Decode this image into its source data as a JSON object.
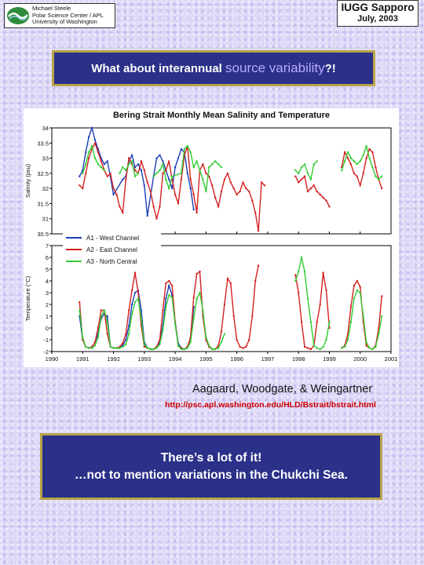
{
  "header": {
    "affiliation_lines": [
      "Michael Steele",
      "Polar Science Center / APL",
      "University of Washington"
    ],
    "conference_title": "IUGG Sapporo",
    "conference_date": "July, 2003"
  },
  "question": {
    "prefix": "What about interannual ",
    "highlight": "source variability",
    "suffix": "?!"
  },
  "chart_data": {
    "type": "line",
    "title": "Bering Strait Monthly Mean Salinity and Temperature",
    "x_ticks": [
      "1990",
      "1991",
      "1992",
      "1993",
      "1994",
      "1995",
      "1996",
      "1997",
      "1998",
      "1999",
      "2000",
      "2001"
    ],
    "xlim": [
      1990,
      2001
    ],
    "salinity": {
      "ylabel": "Salinity  (psu)",
      "ylim": [
        30.5,
        34
      ],
      "y_ticks": [
        "34",
        "33.5",
        "33",
        "32.5",
        "32",
        "31.5",
        "31",
        "30.5"
      ],
      "series": [
        {
          "name": "A1 - West Channel",
          "color": "#1a3fb5",
          "x": [
            1990.9,
            1991.0,
            1991.1,
            1991.2,
            1991.3,
            1991.4,
            1991.5,
            1991.6,
            1991.7,
            1991.8,
            1991.9,
            1992.0,
            1992.3,
            1992.4,
            1992.5,
            1992.6,
            1992.7,
            1992.8,
            1992.9,
            1993.0,
            1993.1,
            1993.3,
            1993.4,
            1993.5,
            1993.6,
            1993.7,
            1993.8,
            1993.9,
            1994.0,
            1994.1,
            1994.2,
            1994.3,
            1994.4,
            1994.5,
            1994.6
          ],
          "y": [
            32.4,
            32.6,
            33.2,
            33.7,
            34.0,
            33.6,
            33.3,
            33.0,
            32.8,
            32.9,
            32.4,
            31.8,
            32.3,
            32.4,
            32.9,
            33.1,
            32.7,
            32.8,
            32.6,
            32.1,
            31.1,
            32.4,
            33.0,
            33.1,
            32.9,
            32.6,
            32.3,
            32.0,
            32.7,
            33.0,
            33.3,
            33.2,
            32.5,
            32.0,
            31.3
          ]
        },
        {
          "name": "A2 - East Channel",
          "color": "#d42020",
          "x": [
            1990.9,
            1991.0,
            1991.1,
            1991.2,
            1991.3,
            1991.4,
            1991.5,
            1991.6,
            1991.7,
            1991.8,
            1991.9,
            1992.0,
            1992.1,
            1992.2,
            1992.3,
            1992.4,
            1992.5,
            1992.6,
            1992.7,
            1992.8,
            1992.9,
            1993.0,
            1993.1,
            1993.2,
            1993.3,
            1993.4,
            1993.5,
            1993.6,
            1993.7,
            1993.8,
            1993.9,
            1994.0,
            1994.1,
            1994.2,
            1994.3,
            1994.4,
            1994.5,
            1994.6,
            1994.7,
            1994.8,
            1994.9,
            1995.0,
            1995.1,
            1995.2,
            1995.3,
            1995.4,
            1995.5,
            1995.6,
            1995.7,
            1995.8,
            1995.9,
            1996.0,
            1996.1,
            1996.2,
            1996.3,
            1996.4,
            1996.5,
            1996.6,
            1996.7,
            1996.8,
            1996.9,
            1997.9,
            1998.0,
            1998.1,
            1998.2,
            1998.3,
            1998.4,
            1998.5,
            1998.6,
            1998.7,
            1998.8,
            1998.9,
            1999.0,
            1999.4,
            1999.5,
            1999.6,
            1999.7,
            1999.8,
            1999.9,
            2000.0,
            2000.1,
            2000.2,
            2000.3,
            2000.4,
            2000.5,
            2000.6,
            2000.7
          ],
          "y": [
            32.1,
            32.0,
            32.5,
            33.0,
            33.3,
            33.5,
            33.2,
            32.9,
            32.6,
            32.4,
            32.5,
            32.0,
            31.8,
            31.4,
            31.2,
            32.3,
            33.0,
            32.8,
            32.6,
            32.5,
            32.9,
            32.6,
            32.2,
            31.9,
            31.4,
            31.0,
            31.4,
            32.5,
            32.6,
            32.9,
            32.3,
            31.8,
            31.5,
            32.3,
            33.1,
            33.4,
            32.3,
            31.8,
            31.2,
            32.6,
            32.8,
            32.5,
            32.4,
            32.1,
            31.7,
            31.4,
            31.9,
            32.3,
            32.5,
            32.2,
            32.0,
            31.8,
            31.9,
            32.2,
            32.0,
            31.9,
            31.6,
            31.2,
            30.6,
            32.2,
            32.1,
            32.4,
            32.2,
            32.3,
            32.4,
            31.9,
            32.0,
            32.1,
            31.9,
            31.8,
            31.7,
            31.6,
            31.4,
            32.7,
            33.2,
            33.0,
            32.8,
            32.5,
            32.4,
            32.1,
            32.5,
            33.0,
            33.3,
            33.2,
            32.7,
            32.3,
            32.0
          ]
        },
        {
          "name": "A3 - North Central",
          "color": "#33cc33",
          "x": [
            1991.0,
            1991.1,
            1991.2,
            1991.3,
            1991.4,
            1991.5,
            1991.6,
            1991.7,
            1992.2,
            1992.3,
            1992.4,
            1992.5,
            1992.6,
            1992.7,
            1992.8,
            1993.3,
            1993.4,
            1993.5,
            1993.6,
            1993.7,
            1993.8,
            1993.9,
            1994.2,
            1994.3,
            1994.4,
            1994.5,
            1994.6,
            1994.7,
            1994.8,
            1994.9,
            1995.0,
            1995.1,
            1995.2,
            1995.3,
            1995.4,
            1995.5,
            1997.9,
            1998.0,
            1998.1,
            1998.2,
            1998.3,
            1998.4,
            1998.5,
            1998.6,
            1999.4,
            1999.5,
            1999.6,
            1999.7,
            1999.8,
            1999.9,
            2000.0,
            2000.1,
            2000.2,
            2000.3,
            2000.4,
            2000.5,
            2000.6,
            2000.7
          ],
          "y": [
            32.5,
            32.8,
            33.2,
            33.4,
            33.0,
            32.8,
            32.7,
            32.6,
            32.5,
            32.7,
            32.6,
            32.8,
            32.9,
            32.4,
            32.5,
            32.4,
            32.5,
            32.6,
            32.8,
            32.3,
            32.0,
            32.4,
            32.5,
            33.3,
            33.4,
            33.2,
            32.7,
            32.9,
            32.6,
            32.3,
            31.9,
            32.7,
            32.8,
            32.9,
            32.8,
            32.7,
            32.6,
            32.5,
            32.7,
            32.8,
            32.5,
            32.3,
            32.8,
            32.9,
            32.6,
            32.9,
            33.2,
            33.0,
            32.9,
            32.8,
            32.9,
            33.1,
            33.4,
            33.0,
            32.7,
            32.4,
            32.3,
            32.4
          ]
        }
      ]
    },
    "temperature": {
      "ylabel": "Temperature  (°C)",
      "ylim": [
        -2,
        7
      ],
      "y_ticks": [
        "7",
        "6",
        "5",
        "4",
        "3",
        "2",
        "1",
        "0",
        "-1",
        "-2"
      ],
      "series": [
        {
          "name": "A1 - West Channel",
          "color": "#1a3fb5",
          "x": [
            1990.9,
            1991.0,
            1991.1,
            1991.2,
            1991.3,
            1991.4,
            1991.5,
            1991.6,
            1991.7,
            1991.8,
            1991.9,
            1992.0,
            1992.1,
            1992.2,
            1992.3,
            1992.4,
            1992.5,
            1992.6,
            1992.7,
            1992.8,
            1992.9,
            1993.0,
            1993.1,
            1993.2,
            1993.3,
            1993.4,
            1993.5,
            1993.6,
            1993.7,
            1993.8,
            1993.9,
            1994.0,
            1994.1,
            1994.2,
            1994.3,
            1994.4,
            1994.5,
            1994.6
          ],
          "y": [
            1.0,
            -1.0,
            -1.6,
            -1.7,
            -1.6,
            -1.2,
            -0.5,
            0.8,
            1.2,
            1.0,
            -1.6,
            -1.7,
            -1.7,
            -1.7,
            -1.5,
            -1.0,
            0.2,
            2.0,
            3.0,
            3.2,
            1.5,
            -1.2,
            -1.7,
            -1.8,
            -1.8,
            -1.6,
            -1.2,
            0.2,
            2.5,
            3.6,
            2.8,
            0.5,
            -1.3,
            -1.7,
            -1.8,
            -1.6,
            -0.8,
            1.8
          ]
        },
        {
          "name": "A2 - East Channel",
          "color": "#d42020",
          "x": [
            1990.9,
            1991.0,
            1991.1,
            1991.2,
            1991.3,
            1991.4,
            1991.5,
            1991.6,
            1991.7,
            1991.8,
            1991.9,
            1992.0,
            1992.1,
            1992.2,
            1992.3,
            1992.4,
            1992.5,
            1992.6,
            1992.7,
            1992.8,
            1992.9,
            1993.0,
            1993.1,
            1993.2,
            1993.3,
            1993.4,
            1993.5,
            1993.6,
            1993.7,
            1993.8,
            1993.9,
            1994.0,
            1994.1,
            1994.2,
            1994.3,
            1994.4,
            1994.5,
            1994.6,
            1994.7,
            1994.8,
            1994.9,
            1995.0,
            1995.1,
            1995.2,
            1995.3,
            1995.4,
            1995.5,
            1995.6,
            1995.7,
            1995.8,
            1995.9,
            1996.0,
            1996.1,
            1996.2,
            1996.3,
            1996.4,
            1996.5,
            1996.6,
            1996.7,
            1997.9,
            1998.0,
            1998.1,
            1998.2,
            1998.3,
            1998.4,
            1998.5,
            1998.6,
            1998.7,
            1998.8,
            1998.9,
            1999.0,
            1999.4,
            1999.5,
            1999.6,
            1999.7,
            1999.8,
            1999.9,
            2000.0,
            2000.1,
            2000.2,
            2000.3,
            2000.4,
            2000.5,
            2000.6,
            2000.7
          ],
          "y": [
            2.2,
            -1.0,
            -1.6,
            -1.7,
            -1.6,
            -1.2,
            0.0,
            1.5,
            1.5,
            -0.5,
            -1.6,
            -1.7,
            -1.7,
            -1.6,
            -1.3,
            -0.5,
            1.5,
            3.2,
            4.7,
            3.0,
            0.2,
            -1.6,
            -1.7,
            -1.8,
            -1.8,
            -1.6,
            -1.0,
            1.5,
            3.8,
            4.0,
            3.6,
            0.5,
            -1.5,
            -1.7,
            -1.8,
            -1.6,
            -0.8,
            2.6,
            4.6,
            4.8,
            1.0,
            -1.0,
            -1.6,
            -1.8,
            -1.8,
            -1.5,
            -0.3,
            2.0,
            4.2,
            3.8,
            1.0,
            -1.0,
            -1.6,
            -1.7,
            -1.6,
            -1.0,
            1.0,
            4.0,
            5.3,
            4.5,
            3.0,
            0.5,
            -1.6,
            -1.7,
            -1.8,
            -1.5,
            0.5,
            2.0,
            4.7,
            3.2,
            0.0,
            -1.7,
            -1.5,
            -0.5,
            1.8,
            3.6,
            4.0,
            3.5,
            0.5,
            -1.5,
            -1.7,
            -1.8,
            -1.5,
            0.0,
            2.7
          ]
        },
        {
          "name": "A3 - North Central",
          "color": "#33cc33",
          "x": [
            1990.9,
            1991.0,
            1991.1,
            1991.2,
            1991.3,
            1991.4,
            1991.5,
            1991.6,
            1991.7,
            1991.8,
            1991.9,
            1992.0,
            1992.1,
            1992.2,
            1992.3,
            1992.4,
            1992.5,
            1992.6,
            1992.7,
            1992.8,
            1992.9,
            1993.0,
            1993.1,
            1993.2,
            1993.3,
            1993.4,
            1993.5,
            1993.6,
            1993.7,
            1993.8,
            1993.9,
            1994.0,
            1994.1,
            1994.2,
            1994.3,
            1994.4,
            1994.5,
            1994.6,
            1994.7,
            1994.8,
            1994.9,
            1995.0,
            1995.1,
            1995.2,
            1995.3,
            1995.4,
            1995.5,
            1995.6,
            1997.9,
            1998.0,
            1998.1,
            1998.2,
            1998.3,
            1998.4,
            1998.5,
            1998.6,
            1998.7,
            1998.8,
            1998.9,
            1999.0,
            1999.4,
            1999.5,
            1999.6,
            1999.7,
            1999.8,
            1999.9,
            2000.0,
            2000.1,
            2000.2,
            2000.3,
            2000.4,
            2000.5,
            2000.6,
            2000.7
          ],
          "y": [
            1.5,
            -0.8,
            -1.6,
            -1.7,
            -1.7,
            -1.5,
            -0.8,
            1.0,
            1.5,
            0.5,
            -1.6,
            -1.7,
            -1.7,
            -1.7,
            -1.6,
            -1.4,
            -0.5,
            1.2,
            2.2,
            2.5,
            0.8,
            -1.4,
            -1.7,
            -1.8,
            -1.8,
            -1.7,
            -1.4,
            -0.2,
            1.8,
            2.8,
            2.6,
            0.3,
            -1.5,
            -1.8,
            -1.8,
            -1.7,
            -1.2,
            0.8,
            2.5,
            3.0,
            1.5,
            -0.8,
            -1.5,
            -1.8,
            -1.8,
            -1.7,
            -1.2,
            -0.5,
            4.0,
            4.8,
            6.0,
            4.8,
            2.5,
            0.5,
            -1.5,
            -1.7,
            -1.8,
            -1.6,
            -1.0,
            0.5,
            -1.7,
            -1.6,
            -1.0,
            0.5,
            2.5,
            3.2,
            3.0,
            1.0,
            -1.2,
            -1.7,
            -1.8,
            -1.6,
            -0.5,
            1.0
          ]
        }
      ]
    },
    "legend": [
      "A1 - West Channel",
      "A2 - East Channel",
      "A3 - North Central"
    ],
    "legend_placement": "inside middle-left"
  },
  "credits": {
    "authors": "Aagaard, Woodgate, & Weingartner",
    "url": "http://psc.apl.washington.edu/HLD/Bstrait/bstrait.html"
  },
  "note": {
    "line1": "There’s a lot of it!",
    "line2": "…not to mention variations in the Chukchi Sea."
  },
  "colors": {
    "panel_blue": "#2b3088",
    "panel_border": "#b7a449",
    "highlight": "#b9a9ff",
    "url_red": "#cc0000"
  }
}
